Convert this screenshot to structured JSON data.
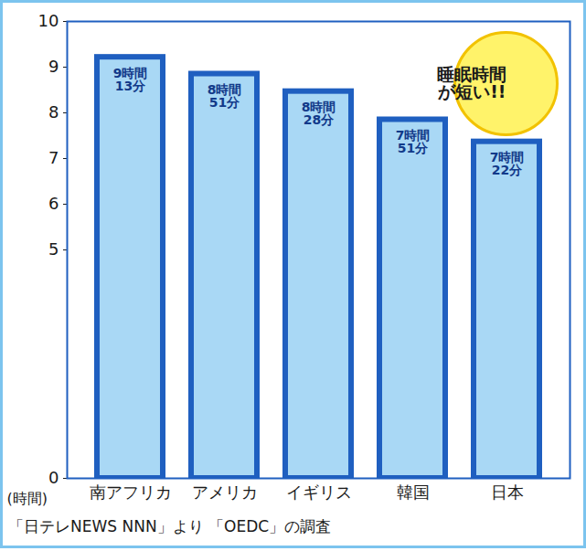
{
  "chart_data": {
    "type": "bar",
    "categories": [
      "南アフリカ",
      "アメリカ",
      "イギリス",
      "韓国",
      "日本"
    ],
    "values": [
      9.2167,
      8.85,
      8.4667,
      7.85,
      7.3667
    ],
    "value_labels": [
      "9時間\n13分",
      "8時間\n51分",
      "8時間\n28分",
      "7時間\n51分",
      "7時間\n22分"
    ],
    "data_labels": true,
    "y_label": "(時間)",
    "ylim": [
      0,
      10
    ],
    "yticks": [
      0,
      5,
      6,
      7,
      8,
      9,
      10
    ],
    "annotation": "睡眠時間\nが短い!!",
    "caption": "「日テレNEWS NNN」より 「OEDC」の調査",
    "color": "#1f5fc0",
    "grid": false
  }
}
